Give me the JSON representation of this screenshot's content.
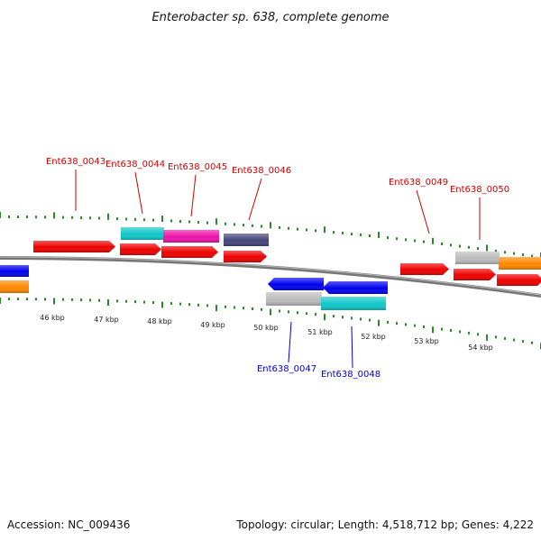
{
  "title": "Enterobacter sp. 638, complete genome",
  "footer": {
    "accession": "Accession: NC_009436",
    "topology": "Topology: circular; Length: 4,518,712 bp; Genes: 4,222"
  },
  "ruler": {
    "labels": [
      "46 kbp",
      "47 kbp",
      "48 kbp",
      "49 kbp",
      "50 kbp",
      "51 kbp",
      "52 kbp",
      "53 kbp",
      "54 kbp"
    ],
    "tick_color": "#2a8a2a"
  },
  "gene_labels": {
    "forward": [
      "Ent638_0043",
      "Ent638_0044",
      "Ent638_0045",
      "Ent638_0046",
      "Ent638_0049",
      "Ent638_0050"
    ],
    "reverse": [
      "Ent638_0047",
      "Ent638_0048"
    ],
    "forward_color": "#cc0000",
    "reverse_color": "#0000cc"
  },
  "colors": {
    "cds": "#ee0000",
    "blue": "#0000ee",
    "cyan": "#11c8c8",
    "magenta": "#ee11aa",
    "slate": "#44447a",
    "gray": "#bbbbbb",
    "orange": "#ff8800",
    "backbone": "#888888"
  }
}
